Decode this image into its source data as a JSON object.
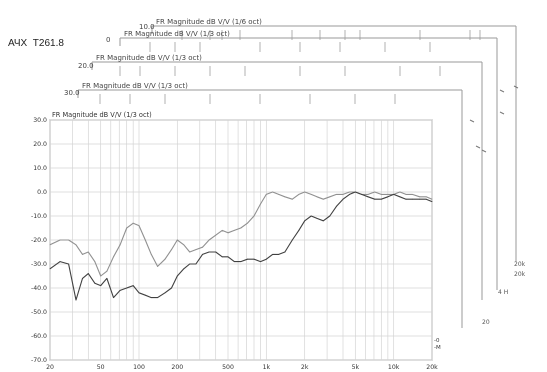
{
  "heading": "АЧХ  T261.8",
  "back_panels": [
    {
      "title": "FR Magnitude dB V/V (1/6 oct)",
      "top_label": "10.0"
    },
    {
      "title": "FR Magnitude dB V/V (1/3 oct)",
      "top_label": "0"
    },
    {
      "title": "FR Magnitude dB V/V (1/3 oct)",
      "top_label": "20.0"
    },
    {
      "title": "FR Magnitude dB V/V (1/3 oct)",
      "top_label": "30.0"
    }
  ],
  "back_right_labels": [
    "20k",
    "20",
    "4 H",
    "20k",
    "-0",
    "-M"
  ],
  "chart_data": {
    "type": "line",
    "title": "FR Magnitude dB V/V (1/3 oct)",
    "xscale": "log",
    "xlim": [
      20,
      20000
    ],
    "ylim": [
      -70,
      30
    ],
    "yticks": [
      30,
      20,
      10,
      0,
      -10,
      -20,
      -30,
      -40,
      -50,
      -60,
      -70
    ],
    "ytick_labels": [
      "30.0",
      "20.0",
      "10.0",
      "0.0",
      "-10.0",
      "-20.0",
      "-30.0",
      "-40.0",
      "-50.0",
      "-60.0",
      "-70.0"
    ],
    "xticks": [
      20,
      50,
      100,
      200,
      500,
      1000,
      2000,
      5000,
      10000,
      20000
    ],
    "xtick_labels": [
      "20",
      "50",
      "100",
      "200",
      "500",
      "1k",
      "2k",
      "5k",
      "10k",
      "20k"
    ],
    "grid": true,
    "legend": "bottom-right",
    "legend_entries": [
      "-0",
      "-M"
    ],
    "series": [
      {
        "color": "#909090",
        "x": [
          20,
          24,
          28,
          32,
          36,
          40,
          45,
          50,
          56,
          63,
          71,
          80,
          90,
          100,
          112,
          125,
          140,
          160,
          180,
          200,
          225,
          250,
          280,
          315,
          355,
          400,
          450,
          500,
          560,
          630,
          710,
          800,
          900,
          1000,
          1120,
          1250,
          1400,
          1600,
          1800,
          2000,
          2250,
          2500,
          2800,
          3150,
          3550,
          4000,
          4500,
          5000,
          5600,
          6300,
          7100,
          8000,
          9000,
          10000,
          11200,
          12500,
          14000,
          16000,
          18000,
          20000
        ],
        "y": [
          -22,
          -20,
          -20,
          -22,
          -26,
          -25,
          -29,
          -35,
          -33,
          -27,
          -22,
          -15,
          -13,
          -14,
          -20,
          -26,
          -31,
          -28,
          -24,
          -20,
          -22,
          -25,
          -24,
          -23,
          -20,
          -18,
          -16,
          -17,
          -16,
          -15,
          -13,
          -10,
          -5,
          -1,
          0,
          -1,
          -2,
          -3,
          -1,
          0,
          -1,
          -2,
          -3,
          -2,
          -1,
          -1,
          0,
          0,
          -1,
          -1,
          0,
          -1,
          -1,
          -1,
          0,
          -1,
          -1,
          -2,
          -2,
          -3
        ]
      },
      {
        "color": "#404040",
        "x": [
          20,
          24,
          28,
          32,
          36,
          40,
          45,
          50,
          56,
          63,
          71,
          80,
          90,
          100,
          112,
          125,
          140,
          160,
          180,
          200,
          225,
          250,
          280,
          315,
          355,
          400,
          450,
          500,
          560,
          630,
          710,
          800,
          900,
          1000,
          1120,
          1250,
          1400,
          1600,
          1800,
          2000,
          2250,
          2500,
          2800,
          3150,
          3550,
          4000,
          4500,
          5000,
          5600,
          6300,
          7100,
          8000,
          9000,
          10000,
          11200,
          12500,
          14000,
          16000,
          18000,
          20000
        ],
        "y": [
          -32,
          -29,
          -30,
          -45,
          -36,
          -34,
          -38,
          -39,
          -36,
          -44,
          -41,
          -40,
          -39,
          -42,
          -43,
          -44,
          -44,
          -42,
          -40,
          -35,
          -32,
          -30,
          -30,
          -26,
          -25,
          -25,
          -27,
          -27,
          -29,
          -29,
          -28,
          -28,
          -29,
          -28,
          -26,
          -26,
          -25,
          -20,
          -16,
          -12,
          -10,
          -11,
          -12,
          -10,
          -6,
          -3,
          -1,
          0,
          -1,
          -2,
          -3,
          -3,
          -2,
          -1,
          -2,
          -3,
          -3,
          -3,
          -3,
          -4
        ]
      }
    ]
  }
}
